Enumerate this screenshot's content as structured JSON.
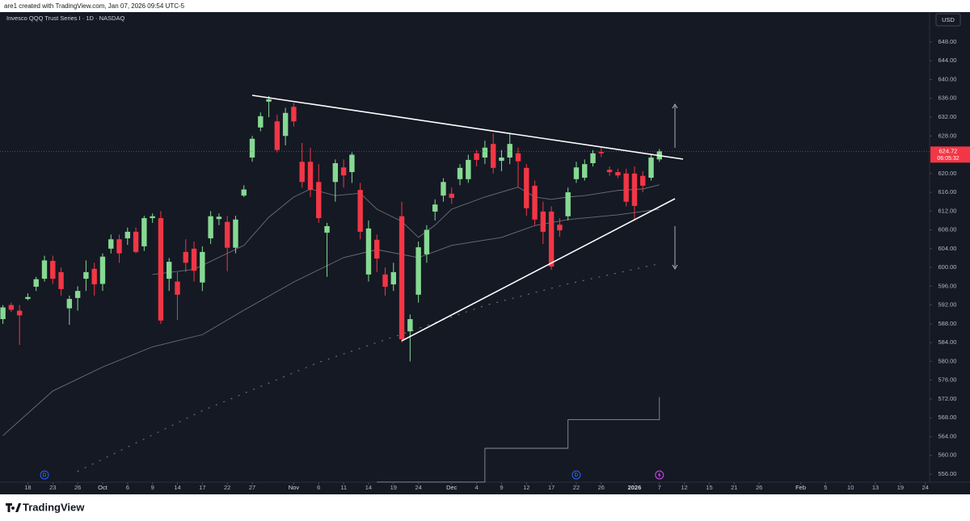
{
  "header": {
    "credit": "are1 created with TradingView.com, Jan 07, 2026 09:54 UTC-5"
  },
  "footer": {
    "logo": "TradingView"
  },
  "chart_data": {
    "type": "candlestick",
    "title": "Invesco QQQ Trust Series I · 1D · NASDAQ",
    "currency": "USD",
    "countdown": "06:05:32",
    "up_color": "#86d992",
    "down_color": "#f23645",
    "background": "#151924",
    "xlim": [
      -12.35,
      99.51
    ],
    "ylim": [
      554.62,
      654.36
    ],
    "x": [
      -12,
      -11,
      -10,
      -9,
      -8,
      -7,
      -6,
      -5,
      -4,
      -3,
      -2,
      -1,
      0,
      1,
      2,
      3,
      4,
      5,
      6,
      7,
      8,
      9,
      10,
      11,
      12,
      13,
      14,
      15,
      16,
      17,
      18,
      19,
      20,
      21,
      22,
      23,
      24,
      25,
      26,
      27,
      28,
      29,
      30,
      31,
      32,
      33,
      34,
      35,
      36,
      37,
      38,
      39,
      40,
      41,
      42,
      43,
      44,
      45,
      46,
      47,
      48,
      49,
      50,
      51,
      52,
      53,
      54,
      55,
      56,
      57,
      58,
      59,
      60,
      61,
      62,
      63,
      64,
      65,
      66,
      67
    ],
    "open": [
      589.0,
      592.0,
      590.8,
      593.3,
      595.9,
      597.6,
      601.4,
      599.0,
      591.3,
      593.5,
      597.6,
      599.7,
      596.5,
      604.0,
      606.0,
      606.2,
      607.6,
      604.5,
      610.5,
      610.5,
      597.6,
      597.0,
      603.3,
      604.0,
      596.8,
      606.2,
      610.3,
      609.7,
      604.2,
      615.3,
      623.4,
      629.8,
      635.3,
      631.1,
      628.0,
      634.2,
      622.5,
      622.5,
      618.2,
      607.4,
      618.2,
      621.3,
      620.3,
      616.5,
      598.5,
      605.9,
      598.5,
      596.4,
      610.9,
      586.4,
      594.2,
      602.8,
      611.9,
      615.3,
      615.7,
      618.8,
      618.8,
      624.3,
      623.4,
      626.3,
      622.7,
      623.4,
      624.3,
      621.2,
      617.4,
      611.9,
      611.9,
      609.1,
      610.9,
      618.8,
      619.1,
      622.2,
      624.6,
      620.8,
      620.3,
      620.0,
      620.0,
      619.5,
      619.1,
      623.0
    ],
    "high": [
      592.0,
      592.5,
      592.0,
      594.5,
      598.0,
      602.5,
      602.5,
      600.0,
      594.0,
      596.0,
      601.5,
      601.0,
      603.0,
      607.0,
      607.0,
      608.5,
      608.5,
      611.0,
      611.5,
      612.0,
      602.0,
      599.0,
      606.0,
      605.5,
      604.5,
      612.0,
      611.5,
      611.0,
      611.0,
      617.5,
      628.0,
      633.0,
      636.5,
      632.5,
      634.0,
      635.0,
      626.5,
      625.5,
      622.0,
      609.5,
      623.0,
      623.0,
      624.5,
      618.0,
      610.0,
      607.0,
      600.0,
      601.0,
      614.0,
      590.0,
      605.5,
      609.0,
      614.5,
      619.0,
      617.0,
      622.0,
      624.0,
      625.0,
      627.0,
      628.5,
      625.0,
      628.5,
      625.5,
      622.0,
      618.5,
      614.0,
      613.0,
      610.5,
      617.0,
      622.5,
      623.0,
      625.0,
      625.5,
      621.5,
      621.0,
      621.0,
      621.5,
      620.5,
      624.0,
      625.2
    ],
    "low": [
      588.0,
      590.5,
      583.5,
      593.0,
      595.0,
      597.0,
      596.5,
      594.0,
      587.8,
      590.8,
      595.0,
      594.0,
      595.0,
      603.0,
      601.0,
      604.8,
      603.0,
      603.5,
      609.5,
      588.0,
      595.0,
      588.8,
      599.0,
      597.0,
      595.0,
      605.0,
      609.0,
      599.2,
      603.0,
      615.0,
      622.5,
      629.0,
      632.0,
      624.5,
      626.0,
      630.0,
      617.0,
      615.0,
      609.5,
      598.0,
      614.0,
      617.0,
      618.0,
      606.0,
      597.0,
      599.0,
      594.0,
      595.0,
      584.0,
      580.0,
      592.5,
      601.0,
      610.0,
      614.0,
      613.5,
      617.5,
      618.0,
      621.5,
      622.0,
      620.0,
      620.5,
      622.0,
      617.0,
      611.0,
      609.0,
      605.0,
      599.5,
      606.5,
      610.0,
      618.0,
      618.5,
      621.5,
      623.5,
      619.5,
      619.0,
      613.0,
      610.2,
      616.0,
      618.5,
      622.5
    ],
    "close": [
      591.5,
      591.0,
      589.8,
      593.7,
      597.5,
      601.5,
      597.6,
      595.4,
      593.3,
      595.0,
      599.0,
      596.4,
      602.3,
      606.0,
      603.0,
      607.6,
      603.3,
      610.5,
      610.9,
      588.7,
      601.2,
      594.2,
      601.0,
      599.3,
      603.3,
      610.9,
      610.8,
      604.2,
      610.2,
      616.6,
      627.4,
      632.2,
      635.8,
      625.0,
      632.9,
      631.1,
      618.2,
      616.5,
      610.5,
      608.8,
      622.2,
      619.6,
      624.0,
      607.6,
      608.3,
      601.9,
      595.9,
      599.0,
      584.7,
      589.0,
      604.3,
      608.0,
      613.4,
      618.2,
      614.8,
      621.2,
      622.9,
      622.9,
      625.5,
      621.2,
      623.4,
      626.3,
      622.6,
      612.6,
      610.2,
      607.6,
      600.2,
      607.9,
      616.0,
      621.3,
      622.0,
      624.3,
      624.3,
      620.3,
      619.6,
      614.0,
      613.1,
      617.4,
      623.4,
      624.72
    ],
    "lines": [
      {
        "color": "#6b6f7a",
        "style": "solid",
        "x": [
          6,
          11,
          17,
          20,
          23,
          25,
          28,
          31,
          33,
          36,
          38,
          40,
          42,
          46,
          50,
          52,
          54,
          56,
          58,
          62,
          65,
          67
        ],
        "values": [
          598.5,
          599.6,
          604.7,
          610.7,
          615.0,
          616.7,
          615.3,
          615.8,
          612.4,
          609.8,
          606.4,
          609.0,
          612.4,
          615.0,
          617.1,
          615.0,
          614.5,
          615.0,
          615.3,
          616.4,
          616.7,
          617.6
        ]
      },
      {
        "color": "#6b6f7a",
        "style": "solid",
        "x": [
          -12,
          -6,
          0,
          6,
          12,
          17,
          23,
          29,
          33,
          38,
          42,
          48,
          52,
          56,
          62,
          67
        ],
        "values": [
          564.2,
          573.7,
          578.8,
          583.1,
          585.7,
          590.9,
          596.9,
          602.1,
          603.8,
          602.1,
          604.7,
          606.4,
          608.9,
          610.2,
          611.2,
          612.4
        ]
      },
      {
        "color": "#6b6f7a",
        "style": "dotted",
        "x": [
          -3,
          12,
          26,
          36,
          46,
          56,
          67
        ],
        "values": [
          556.6,
          569.5,
          579.8,
          585.8,
          591.9,
          596.5,
          600.8
        ]
      },
      {
        "color": "#8a8e99",
        "style": "step",
        "x": [
          33,
          46,
          56,
          67
        ],
        "values": [
          554.3,
          561.5,
          567.6,
          572.4
        ]
      }
    ],
    "markers": [
      {
        "x": -7,
        "label": "D"
      },
      {
        "x": 57,
        "label": "D"
      }
    ],
    "yticks": [
      {
        "value": 556,
        "label": "556.00"
      },
      {
        "value": 560,
        "label": "560.00"
      },
      {
        "value": 564,
        "label": "564.00"
      },
      {
        "value": 568,
        "label": "568.00"
      },
      {
        "value": 572,
        "label": "572.00"
      },
      {
        "value": 576,
        "label": "576.00"
      },
      {
        "value": 580,
        "label": "580.00"
      },
      {
        "value": 584,
        "label": "584.00"
      },
      {
        "value": 588,
        "label": "588.00"
      },
      {
        "value": 592,
        "label": "592.00"
      },
      {
        "value": 596,
        "label": "596.00"
      },
      {
        "value": 600,
        "label": "600.00"
      },
      {
        "value": 604,
        "label": "604.00"
      },
      {
        "value": 608,
        "label": "608.00"
      },
      {
        "value": 612,
        "label": "612.00"
      },
      {
        "value": 616,
        "label": "616.00"
      },
      {
        "value": 620,
        "label": "620.00"
      },
      {
        "value": 628,
        "label": "628.00"
      },
      {
        "value": 632,
        "label": "632.00"
      },
      {
        "value": 636,
        "label": "636.00"
      },
      {
        "value": 640,
        "label": "640.00"
      },
      {
        "value": 644,
        "label": "644.00"
      },
      {
        "value": 648,
        "label": "648.00"
      }
    ],
    "xticks": [
      {
        "value": -9,
        "label": "18"
      },
      {
        "value": -6,
        "label": "23"
      },
      {
        "value": -3,
        "label": "26"
      },
      {
        "value": 0,
        "label": "Oct"
      },
      {
        "value": 3,
        "label": "6"
      },
      {
        "value": 6,
        "label": "9"
      },
      {
        "value": 9,
        "label": "14"
      },
      {
        "value": 12,
        "label": "17"
      },
      {
        "value": 15,
        "label": "22"
      },
      {
        "value": 18,
        "label": "27"
      },
      {
        "value": 23,
        "label": "Nov"
      },
      {
        "value": 26,
        "label": "6"
      },
      {
        "value": 29,
        "label": "11"
      },
      {
        "value": 32,
        "label": "14"
      },
      {
        "value": 35,
        "label": "19"
      },
      {
        "value": 38,
        "label": "24"
      },
      {
        "value": 42,
        "label": "Dec"
      },
      {
        "value": 45,
        "label": "4"
      },
      {
        "value": 48,
        "label": "9"
      },
      {
        "value": 51,
        "label": "12"
      },
      {
        "value": 54,
        "label": "17"
      },
      {
        "value": 57,
        "label": "22"
      },
      {
        "value": 60,
        "label": "26"
      },
      {
        "value": 64,
        "label": "2026"
      },
      {
        "value": 67,
        "label": "7"
      },
      {
        "value": 70,
        "label": "12"
      },
      {
        "value": 73,
        "label": "15"
      },
      {
        "value": 76,
        "label": "21"
      },
      {
        "value": 79,
        "label": "26"
      },
      {
        "value": 84,
        "label": "Feb"
      },
      {
        "value": 87,
        "label": "5"
      },
      {
        "value": 90,
        "label": "10"
      },
      {
        "value": 93,
        "label": "13"
      },
      {
        "value": 96,
        "label": "19"
      },
      {
        "value": 99,
        "label": "24"
      }
    ]
  }
}
